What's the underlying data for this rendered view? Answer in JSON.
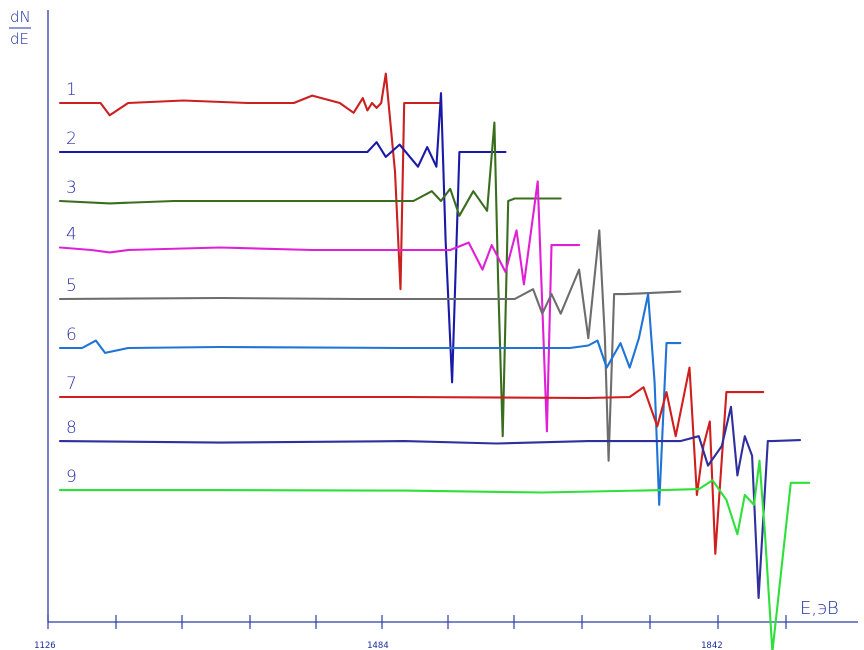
{
  "chart_data": {
    "type": "line",
    "title": "",
    "ylabel_top": "dN",
    "ylabel_bottom": "dE",
    "xlabel": "E,эВ",
    "x_tick_labels": [
      "1126",
      "1484",
      "1842"
    ],
    "xlim": [
      1126,
      1950
    ],
    "grid": false,
    "legend": "none",
    "series": [
      {
        "name": "1",
        "color": "#cc1f1f",
        "baseline": 8.6,
        "x": [
          1126,
          1170,
          1180,
          1200,
          1260,
          1330,
          1380,
          1400,
          1430,
          1445,
          1455,
          1460,
          1465,
          1470,
          1475,
          1480,
          1486,
          1490,
          1496,
          1500,
          1540
        ],
        "y": [
          8.6,
          8.6,
          8.35,
          8.6,
          8.65,
          8.6,
          8.6,
          8.75,
          8.6,
          8.4,
          8.7,
          8.45,
          8.6,
          8.5,
          8.6,
          9.2,
          8.0,
          7.2,
          4.8,
          8.6,
          8.6
        ]
      },
      {
        "name": "2",
        "color": "#1a1aa8",
        "baseline": 7.6,
        "x": [
          1126,
          1200,
          1300,
          1430,
          1460,
          1470,
          1480,
          1495,
          1515,
          1525,
          1535,
          1540,
          1545,
          1552,
          1560,
          1610
        ],
        "y": [
          7.6,
          7.6,
          7.6,
          7.6,
          7.6,
          7.8,
          7.5,
          7.75,
          7.3,
          7.7,
          7.3,
          8.8,
          5.8,
          2.9,
          7.6,
          7.6
        ]
      },
      {
        "name": "3",
        "color": "#3a6e1e",
        "baseline": 6.6,
        "x": [
          1126,
          1180,
          1250,
          1400,
          1510,
          1530,
          1540,
          1550,
          1560,
          1575,
          1590,
          1598,
          1602,
          1607,
          1613,
          1620,
          1670
        ],
        "y": [
          6.6,
          6.55,
          6.6,
          6.6,
          6.6,
          6.8,
          6.6,
          6.85,
          6.3,
          6.8,
          6.4,
          8.2,
          5.0,
          1.8,
          6.6,
          6.65,
          6.65
        ]
      },
      {
        "name": "4",
        "color": "#e020d6",
        "baseline": 5.65,
        "x": [
          1126,
          1160,
          1180,
          1200,
          1300,
          1400,
          1550,
          1570,
          1585,
          1595,
          1610,
          1622,
          1630,
          1645,
          1655,
          1660,
          1670,
          1690
        ],
        "y": [
          5.65,
          5.6,
          5.55,
          5.6,
          5.65,
          5.6,
          5.6,
          5.75,
          5.2,
          5.7,
          5.15,
          6.0,
          4.9,
          7.0,
          1.9,
          5.7,
          5.7,
          5.7
        ]
      },
      {
        "name": "5",
        "color": "#6d6d6d",
        "baseline": 4.6,
        "x": [
          1126,
          1300,
          1450,
          1620,
          1640,
          1650,
          1660,
          1670,
          1690,
          1700,
          1712,
          1718,
          1722,
          1728,
          1740,
          1800
        ],
        "y": [
          4.6,
          4.62,
          4.6,
          4.6,
          4.8,
          4.3,
          4.7,
          4.3,
          5.2,
          3.8,
          6.0,
          3.8,
          1.3,
          4.7,
          4.7,
          4.75
        ]
      },
      {
        "name": "6",
        "color": "#1f74d6",
        "baseline": 3.6,
        "x": [
          1126,
          1150,
          1165,
          1175,
          1200,
          1300,
          1500,
          1680,
          1700,
          1710,
          1720,
          1735,
          1745,
          1755,
          1765,
          1772,
          1777,
          1785,
          1800
        ],
        "y": [
          3.6,
          3.6,
          3.75,
          3.5,
          3.6,
          3.62,
          3.6,
          3.6,
          3.65,
          3.75,
          3.2,
          3.7,
          3.2,
          3.8,
          4.7,
          2.9,
          0.4,
          3.7,
          3.7
        ]
      },
      {
        "name": "7",
        "color": "#d01e1e",
        "baseline": 2.6,
        "x": [
          1126,
          1250,
          1500,
          1700,
          1745,
          1760,
          1775,
          1785,
          1795,
          1810,
          1818,
          1825,
          1832,
          1838,
          1850,
          1890
        ],
        "y": [
          2.6,
          2.6,
          2.6,
          2.58,
          2.6,
          2.8,
          2.0,
          2.7,
          1.8,
          3.2,
          0.6,
          1.6,
          2.1,
          -0.6,
          2.7,
          2.7
        ]
      },
      {
        "name": "8",
        "color": "#2f2f9e",
        "baseline": 1.7,
        "x": [
          1126,
          1300,
          1500,
          1600,
          1700,
          1800,
          1820,
          1830,
          1845,
          1855,
          1862,
          1870,
          1878,
          1885,
          1895,
          1900,
          1930
        ],
        "y": [
          1.7,
          1.67,
          1.7,
          1.65,
          1.7,
          1.7,
          1.8,
          1.2,
          1.6,
          2.4,
          1.0,
          1.8,
          1.4,
          -1.5,
          1.7,
          1.7,
          1.72
        ]
      },
      {
        "name": "9",
        "color": "#2ee03a",
        "baseline": 0.7,
        "x": [
          1126,
          1300,
          1500,
          1650,
          1780,
          1820,
          1835,
          1850,
          1862,
          1870,
          1880,
          1886,
          1892,
          1900,
          1920,
          1940
        ],
        "y": [
          0.7,
          0.7,
          0.69,
          0.65,
          0.7,
          0.72,
          0.9,
          0.5,
          -0.2,
          0.6,
          0.4,
          1.3,
          -0.2,
          -2.6,
          0.85,
          0.85
        ]
      }
    ]
  }
}
